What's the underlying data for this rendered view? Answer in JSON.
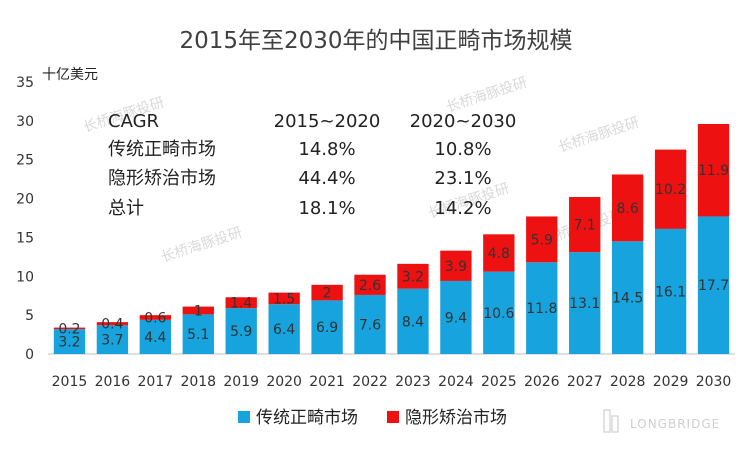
{
  "chart_data": {
    "type": "bar",
    "stacked": true,
    "title": "2015年至2030年的中国正畸市场规模",
    "ylabel": "十亿美元",
    "xlabel": "",
    "ylim": [
      0,
      35
    ],
    "yticks": [
      0,
      5,
      10,
      15,
      20,
      25,
      30,
      35
    ],
    "grid": false,
    "legend_position": "bottom",
    "categories": [
      "2015",
      "2016",
      "2017",
      "2018",
      "2019",
      "2020",
      "2021",
      "2022",
      "2023",
      "2024",
      "2025",
      "2026",
      "2027",
      "2028",
      "2029",
      "2030"
    ],
    "series": [
      {
        "name": "传统正畸市场",
        "color": "#16a3de",
        "values": [
          3.2,
          3.7,
          4.4,
          5.1,
          5.9,
          6.4,
          6.9,
          7.6,
          8.4,
          9.4,
          10.6,
          11.8,
          13.1,
          14.5,
          16.1,
          17.7
        ],
        "labels": [
          "3.2",
          "3.7",
          "4.4",
          "5.1",
          "5.9",
          "6.4",
          "6.9",
          "7.6",
          "8.4",
          "9.4",
          "10.6",
          "11.8",
          "13.1",
          "14.5",
          "16.1",
          "17.7"
        ]
      },
      {
        "name": "隐形矫治市场",
        "color": "#ee1111",
        "values": [
          0.2,
          0.4,
          0.6,
          1,
          1.4,
          1.5,
          2,
          2.6,
          3.2,
          3.9,
          4.8,
          5.9,
          7.1,
          8.6,
          10.2,
          11.9
        ],
        "labels": [
          "0.2",
          "0.4",
          "0.6",
          "1",
          "1.4",
          "1.5",
          "2",
          "2.6",
          "3.2",
          "3.9",
          "4.8",
          "5.9",
          "7.1",
          "8.6",
          "10.2",
          "11.9"
        ]
      }
    ],
    "annotation_table": {
      "header": [
        "CAGR",
        "2015~2020",
        "2020~2030"
      ],
      "rows": [
        [
          "传统正畸市场",
          "14.8%",
          "10.8%"
        ],
        [
          "隐形矫治市场",
          "44.4%",
          "23.1%"
        ],
        [
          "总计",
          "18.1%",
          "14.2%"
        ]
      ]
    }
  },
  "watermark": {
    "text": "长桥海豚投研",
    "brand": "LONGBRIDGE"
  }
}
